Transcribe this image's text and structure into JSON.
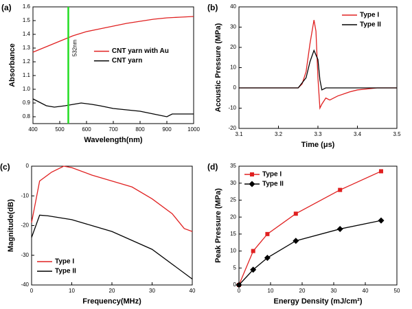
{
  "chart_data": [
    {
      "type": "line",
      "panel": "(a)",
      "xlabel": "Wavelength(nm)",
      "ylabel": "Absorbance",
      "xlim": [
        400,
        1000
      ],
      "xticks": [
        400,
        500,
        600,
        700,
        800,
        900,
        1000
      ],
      "ylim": [
        0.75,
        1.6
      ],
      "yticks": [
        0.8,
        0.9,
        {
          "value": 1,
          "label": "1.0"
        },
        1.1,
        1.2,
        1.3,
        1.4,
        1.5,
        1.6
      ],
      "legend": "center-right",
      "series": [
        {
          "name": "CNT yarn with Au",
          "color": "#e02020",
          "x": [
            400,
            450,
            500,
            550,
            600,
            650,
            700,
            750,
            800,
            850,
            900,
            950,
            1000
          ],
          "values": [
            1.27,
            1.31,
            1.35,
            1.39,
            1.42,
            1.44,
            1.46,
            1.48,
            1.495,
            1.51,
            1.52,
            1.525,
            1.53
          ]
        },
        {
          "name": "CNT yarn",
          "color": "#000000",
          "x": [
            400,
            420,
            450,
            480,
            520,
            550,
            580,
            620,
            650,
            700,
            750,
            800,
            850,
            900,
            920,
            950,
            1000
          ],
          "values": [
            0.93,
            0.91,
            0.88,
            0.87,
            0.88,
            0.89,
            0.9,
            0.89,
            0.88,
            0.86,
            0.85,
            0.84,
            0.82,
            0.8,
            0.82,
            0.82,
            0.82
          ]
        }
      ],
      "annotation": {
        "text": "532nm",
        "x": 532,
        "color": "#22dd22"
      }
    },
    {
      "type": "line",
      "panel": "(b)",
      "xlabel": "Time (μs)",
      "ylabel": "Acoustic Pressure (MPa)",
      "xlim": [
        3.1,
        3.5
      ],
      "xticks": [
        3.1,
        3.2,
        3.3,
        3.4,
        3.5
      ],
      "ylim": [
        -20,
        40
      ],
      "yticks": [
        -20,
        -10,
        0,
        10,
        20,
        30,
        40
      ],
      "legend": "top-right",
      "series": [
        {
          "name": "Type I",
          "color": "#e02020",
          "x": [
            3.1,
            3.2,
            3.25,
            3.26,
            3.27,
            3.28,
            3.29,
            3.295,
            3.3,
            3.305,
            3.31,
            3.32,
            3.33,
            3.35,
            3.38,
            3.4,
            3.45,
            3.5
          ],
          "values": [
            0,
            0,
            0,
            2,
            8,
            22,
            33.5,
            28,
            5,
            -10,
            -8,
            -5,
            -6,
            -4,
            -2,
            -1,
            0,
            0
          ]
        },
        {
          "name": "Type II",
          "color": "#000000",
          "x": [
            3.1,
            3.25,
            3.27,
            3.28,
            3.29,
            3.3,
            3.305,
            3.31,
            3.32,
            3.5
          ],
          "values": [
            0,
            0,
            5,
            13,
            18.5,
            14,
            4,
            -1,
            0,
            0
          ]
        }
      ]
    },
    {
      "type": "line",
      "panel": "(c)",
      "xlabel": "Frequency(MHz)",
      "ylabel": "Magnitude(dB)",
      "xlim": [
        0,
        40
      ],
      "xticks": [
        0,
        10,
        20,
        30,
        40
      ],
      "ylim": [
        -40,
        0
      ],
      "yticks": [
        -40,
        -30,
        -20,
        -10,
        0
      ],
      "legend": "bottom-left",
      "series": [
        {
          "name": "Type I",
          "color": "#e02020",
          "x": [
            0,
            2,
            5,
            8,
            10,
            15,
            20,
            25,
            30,
            35,
            38,
            40
          ],
          "values": [
            -19,
            -5,
            -2,
            0,
            -0.5,
            -3,
            -5,
            -7,
            -11,
            -16,
            -21,
            -22
          ]
        },
        {
          "name": "Type II",
          "color": "#000000",
          "x": [
            0,
            2,
            4,
            10,
            15,
            20,
            25,
            30,
            35,
            40
          ],
          "values": [
            -24,
            -16.5,
            -16.7,
            -18,
            -20,
            -22,
            -25,
            -28,
            -33,
            -38
          ]
        }
      ]
    },
    {
      "type": "line",
      "panel": "(d)",
      "xlabel": "Energy Density (mJ/cm²)",
      "ylabel": "Peak Pressure (MPa)",
      "xlim": [
        0,
        50
      ],
      "xticks": [
        0,
        10,
        20,
        30,
        40,
        50
      ],
      "ylim": [
        0,
        35
      ],
      "yticks": [
        0,
        5,
        10,
        15,
        20,
        25,
        30,
        35
      ],
      "legend": "top-left",
      "series": [
        {
          "name": "Type I",
          "color": "#e02020",
          "marker": "square",
          "x": [
            0,
            4.5,
            9,
            18,
            32,
            45
          ],
          "values": [
            0,
            10,
            15,
            21,
            28,
            33.5
          ]
        },
        {
          "name": "Type II",
          "color": "#000000",
          "marker": "diamond",
          "x": [
            0,
            4.5,
            9,
            18,
            32,
            45
          ],
          "values": [
            0,
            4.5,
            8,
            13,
            16.5,
            19
          ]
        }
      ]
    }
  ]
}
